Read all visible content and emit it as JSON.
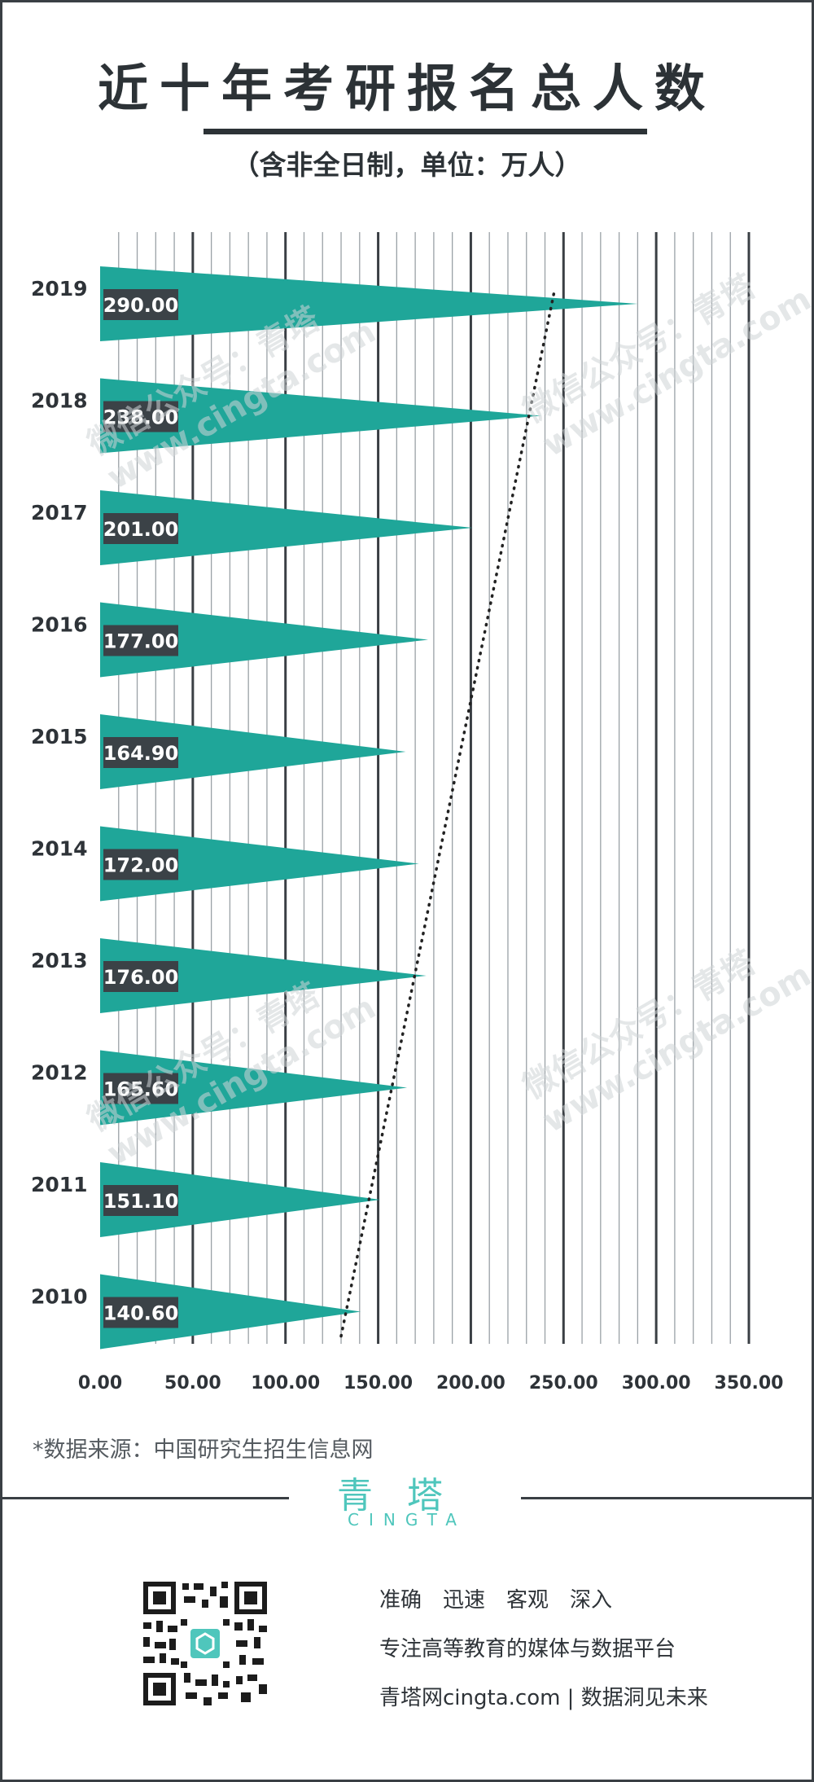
{
  "title": "近十年考研报名总人数",
  "subtitle": "（含非全日制，单位：万人）",
  "chart_data": {
    "type": "bar",
    "orientation": "horizontal",
    "title": "近十年考研报名总人数",
    "subtitle": "（含非全日制，单位：万人）",
    "categories": [
      "2019",
      "2018",
      "2017",
      "2016",
      "2015",
      "2014",
      "2013",
      "2012",
      "2011",
      "2010"
    ],
    "values": [
      290.0,
      238.0,
      201.0,
      177.0,
      164.9,
      172.0,
      176.0,
      165.6,
      151.1,
      140.6
    ],
    "value_labels": [
      "290.00",
      "238.00",
      "201.00",
      "177.00",
      "164.90",
      "172.00",
      "176.00",
      "165.60",
      "151.10",
      "140.60"
    ],
    "xlim": [
      0,
      350
    ],
    "x_ticks": [
      0,
      50,
      100,
      150,
      200,
      250,
      300,
      350
    ],
    "x_tick_labels": [
      "0.00",
      "50.00",
      "100.00",
      "150.00",
      "200.00",
      "250.00",
      "300.00",
      "350.00"
    ],
    "bar_color": "#1fa699",
    "label_bg_color": "#3b4247",
    "trendline": {
      "style": "dotted",
      "from": [
        130,
        "2010"
      ],
      "to": [
        245,
        "2019"
      ]
    },
    "grid": true
  },
  "source": "*数据来源：中国研究生招生信息网",
  "brand": {
    "cn": "青塔",
    "en": "CINGTA",
    "color": "#4fc6bc"
  },
  "slogans": [
    "准确　迅速　客观　深入",
    "专注高等教育的媒体与数据平台",
    "青塔网cingta.com | 数据洞见未来"
  ],
  "watermark": {
    "line1": "微信公众号：青塔",
    "line2": "www.cingta.com"
  }
}
